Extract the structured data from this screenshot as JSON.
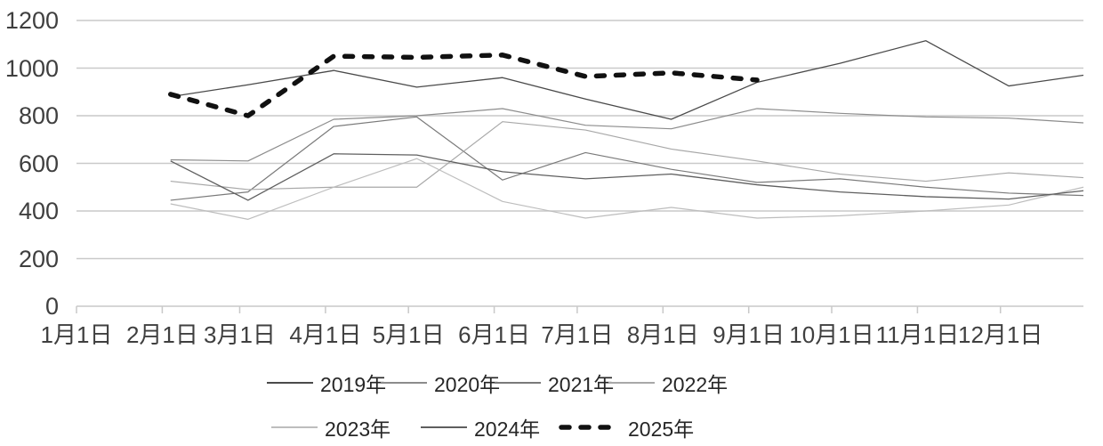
{
  "chart_data": {
    "type": "line",
    "title": "",
    "xlabel": "",
    "ylabel": "",
    "grid": "horizontal",
    "y_axis": {
      "range": [
        0,
        1200
      ],
      "ticks": [
        0,
        200,
        400,
        600,
        800,
        1000,
        1200
      ]
    },
    "x_axis": {
      "tick_labels": [
        "1月1日",
        "2月1日",
        "3月1日",
        "4月1日",
        "5月1日",
        "6月1日",
        "7月1日",
        "8月1日",
        "9月1日",
        "10月1日",
        "11月1日",
        "12月1日"
      ],
      "tick_days": [
        1,
        32,
        60,
        91,
        121,
        152,
        182,
        213,
        244,
        274,
        305,
        335
      ]
    },
    "legend": {
      "position": "bottom",
      "rows": [
        [
          "2019年",
          "2020年",
          "2021年",
          "2022年"
        ],
        [
          "2023年",
          "2024年",
          "2025年"
        ]
      ]
    },
    "series": [
      {
        "name": "2019年",
        "color": "#4a4a4a",
        "width": 1.3,
        "dashed": false,
        "x_days": [
          35,
          63,
          94,
          124,
          155,
          185,
          216,
          247,
          277,
          308,
          338,
          365
        ],
        "values": [
          880,
          930,
          990,
          920,
          960,
          870,
          785,
          940,
          1020,
          1115,
          925,
          970
        ]
      },
      {
        "name": "2020年",
        "color": "#8c8c8c",
        "width": 1.2,
        "dashed": false,
        "x_days": [
          35,
          63,
          94,
          124,
          155,
          185,
          216,
          247,
          277,
          308,
          338,
          365
        ],
        "values": [
          615,
          610,
          785,
          800,
          830,
          760,
          745,
          830,
          810,
          795,
          790,
          770
        ]
      },
      {
        "name": "2021年",
        "color": "#7a7a7a",
        "width": 1.2,
        "dashed": false,
        "x_days": [
          35,
          63,
          94,
          124,
          155,
          185,
          216,
          247,
          277,
          308,
          338,
          365
        ],
        "values": [
          445,
          480,
          755,
          795,
          530,
          645,
          575,
          520,
          535,
          500,
          475,
          465
        ]
      },
      {
        "name": "2022年",
        "color": "#a8a8a8",
        "width": 1.2,
        "dashed": false,
        "x_days": [
          35,
          63,
          94,
          124,
          155,
          185,
          216,
          247,
          277,
          308,
          338,
          365
        ],
        "values": [
          525,
          490,
          500,
          500,
          775,
          740,
          660,
          610,
          555,
          525,
          560,
          540
        ]
      },
      {
        "name": "2023年",
        "color": "#bdbdbd",
        "width": 1.2,
        "dashed": false,
        "x_days": [
          35,
          63,
          94,
          124,
          155,
          185,
          216,
          247,
          277,
          308,
          338,
          365
        ],
        "values": [
          430,
          365,
          500,
          620,
          440,
          370,
          415,
          370,
          380,
          400,
          425,
          500
        ]
      },
      {
        "name": "2024年",
        "color": "#5f5f5f",
        "width": 1.3,
        "dashed": false,
        "x_days": [
          35,
          63,
          94,
          124,
          155,
          185,
          216,
          247,
          277,
          308,
          338,
          365
        ],
        "values": [
          610,
          445,
          640,
          635,
          565,
          535,
          555,
          510,
          480,
          460,
          450,
          485
        ]
      },
      {
        "name": "2025年",
        "color": "#111111",
        "width": 5.5,
        "dashed": true,
        "x_days": [
          35,
          63,
          94,
          124,
          155,
          185,
          216,
          247
        ],
        "values": [
          890,
          800,
          1050,
          1045,
          1055,
          965,
          980,
          950
        ]
      }
    ],
    "colors": {
      "gridline": "#c9c9c9",
      "axis_text": "#3f3f3f",
      "legend_text": "#262626"
    }
  }
}
